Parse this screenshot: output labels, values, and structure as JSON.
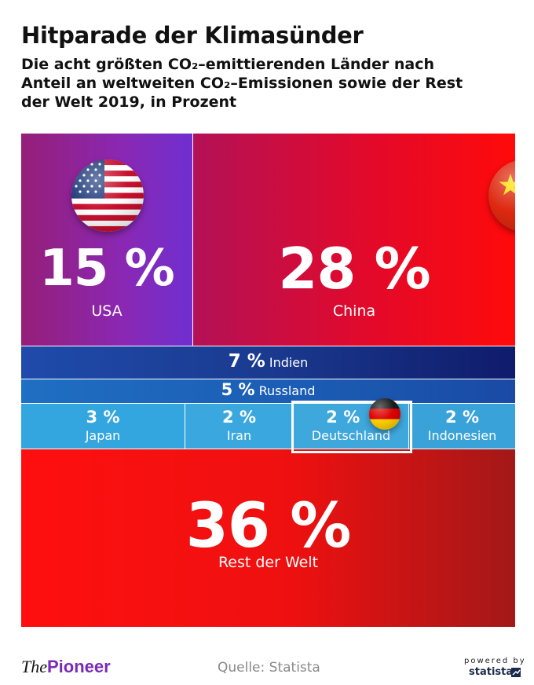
{
  "title": "Hitparade der Klimasünder",
  "subtitle_lines": [
    "Die acht größten CO₂–emittierenden Länder nach",
    "Anteil an weltweiten CO₂–Emissionen sowie der Rest",
    "der Welt 2019, in Prozent"
  ],
  "chart_data": {
    "type": "treemap",
    "title": "Hitparade der Klimasünder",
    "subtitle": "Die acht größten CO₂–emittierenden Länder nach Anteil an weltweiten CO₂–Emissionen sowie der Rest der Welt 2019, in Prozent",
    "unit": "%",
    "categories": [
      "USA",
      "China",
      "Indien",
      "Russland",
      "Japan",
      "Iran",
      "Deutschland",
      "Indonesien",
      "Rest der Welt"
    ],
    "values": [
      15,
      28,
      7,
      5,
      3,
      2,
      2,
      2,
      36
    ],
    "value_labels": [
      "15 %",
      "28 %",
      "7 %",
      "5 %",
      "3 %",
      "2 %",
      "2 %",
      "2 %",
      "36 %"
    ],
    "highlighted": "Deutschland",
    "colors": {
      "USA": "#8a28b4",
      "China": "#e3092a",
      "Indien": "#1a3a8f",
      "Russland": "#1b5bb3",
      "Japan": "#33a6df",
      "Iran": "#3aa8de",
      "Deutschland": "#3ea7dc",
      "Indonesien": "#39a3d9",
      "Rest der Welt": "#ee1010"
    },
    "icons": {
      "USA": "us-flag-icon",
      "China": "china-flag-icon",
      "Deutschland": "germany-flag-icon"
    }
  },
  "footer": {
    "brand_the": "The",
    "brand_pioneer": "Pioneer",
    "source": "Quelle: Statista",
    "powered_by": "powered by",
    "statista": "statista"
  }
}
